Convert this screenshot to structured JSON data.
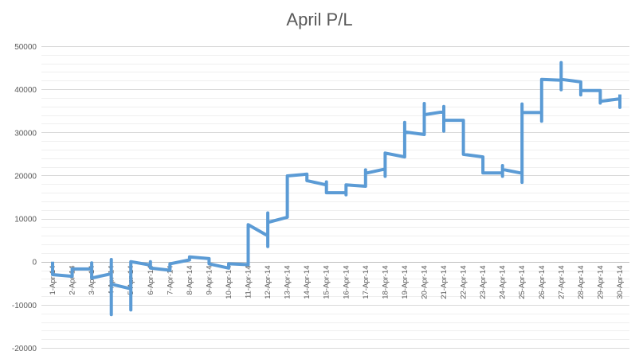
{
  "chart_data": {
    "type": "line",
    "title": "April P/L",
    "xlabel": "",
    "ylabel": "",
    "ylim": [
      -20000,
      50000
    ],
    "yticks": [
      50000,
      40000,
      30000,
      20000,
      10000,
      0,
      -10000,
      -20000
    ],
    "grid": true,
    "legend": "none",
    "line_color": "#5B9BD5",
    "categories": [
      "1-Apr-14",
      "2-Apr-14",
      "3-Apr-14",
      "4-Apr-14",
      "5-Apr-14",
      "6-Apr-14",
      "7-Apr-14",
      "8-Apr-14",
      "9-Apr-14",
      "10-Apr-14",
      "11-Apr-14",
      "12-Apr-14",
      "13-Apr-14",
      "14-Apr-14",
      "15-Apr-14",
      "16-Apr-14",
      "17-Apr-14",
      "18-Apr-14",
      "19-Apr-14",
      "20-Apr-14",
      "21-Apr-14",
      "22-Apr-14",
      "23-Apr-14",
      "24-Apr-14",
      "25-Apr-14",
      "26-Apr-14",
      "27-Apr-14",
      "28-Apr-14",
      "29-Apr-14",
      "30-Apr-14"
    ],
    "series": [
      {
        "points": [
          [
            0.0,
            0
          ],
          [
            0.0,
            -3000
          ],
          [
            1.0,
            -3400
          ],
          [
            1.0,
            -1700
          ],
          [
            2.0,
            -1700
          ],
          [
            2.0,
            -300
          ],
          [
            2.0,
            -3800
          ],
          [
            3.0,
            -2800
          ],
          [
            3.0,
            500
          ],
          [
            3.0,
            -12300
          ],
          [
            3.0,
            -5200
          ],
          [
            4.0,
            -6300
          ],
          [
            4.0,
            -11200
          ],
          [
            4.0,
            0
          ],
          [
            5.0,
            -800
          ],
          [
            5.0,
            0
          ],
          [
            5.0,
            -1500
          ],
          [
            6.0,
            -2000
          ],
          [
            6.0,
            -500
          ],
          [
            7.0,
            400
          ],
          [
            7.0,
            1100
          ],
          [
            8.0,
            700
          ],
          [
            8.0,
            -500
          ],
          [
            9.0,
            -1500
          ],
          [
            9.0,
            -500
          ],
          [
            10.0,
            -700
          ],
          [
            10.0,
            8600
          ],
          [
            11.0,
            6000
          ],
          [
            11.0,
            3500
          ],
          [
            11.0,
            11300
          ],
          [
            11.0,
            9100
          ],
          [
            12.0,
            10300
          ],
          [
            12.0,
            19900
          ],
          [
            13.0,
            20300
          ],
          [
            13.0,
            18800
          ],
          [
            14.0,
            17800
          ],
          [
            14.0,
            18500
          ],
          [
            14.0,
            16000
          ],
          [
            15.0,
            16000
          ],
          [
            15.0,
            15500
          ],
          [
            15.0,
            17800
          ],
          [
            16.0,
            17500
          ],
          [
            16.0,
            21300
          ],
          [
            16.0,
            20500
          ],
          [
            17.0,
            21500
          ],
          [
            17.0,
            19800
          ],
          [
            17.0,
            25200
          ],
          [
            18.0,
            24300
          ],
          [
            18.0,
            32300
          ],
          [
            18.0,
            30100
          ],
          [
            19.0,
            29500
          ],
          [
            19.0,
            36700
          ],
          [
            19.0,
            34100
          ],
          [
            20.0,
            34800
          ],
          [
            20.0,
            36000
          ],
          [
            20.0,
            30300
          ],
          [
            20.0,
            32800
          ],
          [
            21.0,
            32800
          ],
          [
            21.0,
            24900
          ],
          [
            22.0,
            24300
          ],
          [
            22.0,
            20600
          ],
          [
            23.0,
            20600
          ],
          [
            23.0,
            19800
          ],
          [
            23.0,
            22300
          ],
          [
            23.0,
            21400
          ],
          [
            24.0,
            20500
          ],
          [
            24.0,
            18400
          ],
          [
            24.0,
            36600
          ],
          [
            24.0,
            34600
          ],
          [
            25.0,
            34600
          ],
          [
            25.0,
            32600
          ],
          [
            25.0,
            42300
          ],
          [
            26.0,
            42100
          ],
          [
            26.0,
            46200
          ],
          [
            26.0,
            39900
          ],
          [
            26.0,
            42300
          ],
          [
            27.0,
            41700
          ],
          [
            27.0,
            38700
          ],
          [
            27.0,
            39700
          ],
          [
            28.0,
            39700
          ],
          [
            28.0,
            36800
          ],
          [
            28.0,
            37200
          ],
          [
            29.0,
            37800
          ],
          [
            29.0,
            35800
          ],
          [
            29.0,
            38800
          ]
        ]
      }
    ]
  }
}
